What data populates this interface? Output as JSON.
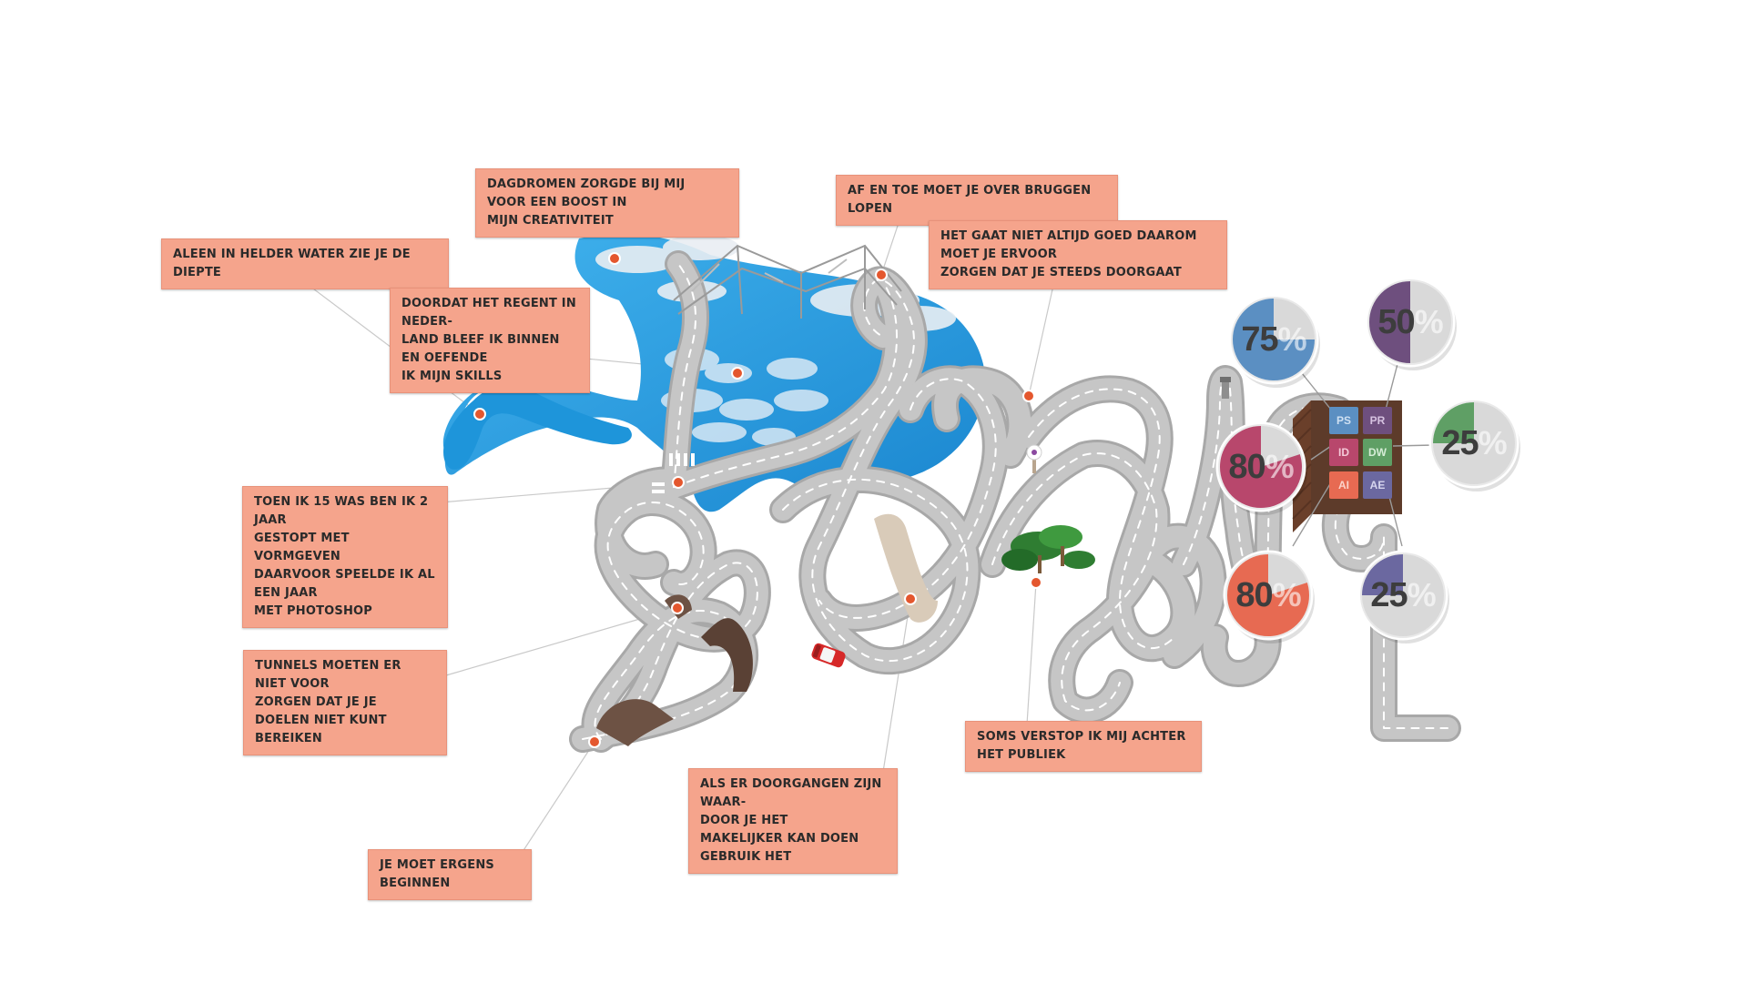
{
  "labels": {
    "dagdromen": "DAGDROMEN ZORGDE BIJ MIJ VOOR EEN BOOST IN\nMIJN CREATIVITEIT",
    "bruggen": "AF EN TOE MOET JE OVER BRUGGEN LOPEN",
    "water": "ALEEN IN HELDER WATER ZIE JE DE DIEPTE",
    "doorgaat": "HET GAAT NIET ALTIJD GOED DAAROM MOET JE ERVOOR\nZORGEN DAT JE STEEDS DOORGAAT",
    "regent": "DOORDAT HET REGENT IN NEDER-\nLAND BLEEF IK BINNEN EN OEFENDE\nIK MIJN SKILLS",
    "vijftien": "TOEN IK 15 WAS BEN IK 2 JAAR\nGESTOPT MET VORMGEVEN\nDAARVOOR SPEELDE IK AL EEN JAAR\nMET PHOTOSHOP",
    "tunnels": "TUNNELS MOETEN ER NIET VOOR\nZORGEN DAT JE JE DOELEN NIET KUNT\nBEREIKEN",
    "publiek": "SOMS VERSTOP IK MIJ ACHTER HET PUBLIEK",
    "doorgangen": "ALS ER DOORGANGEN ZIJN WAAR-\nDOOR JE HET\nMAKELIJKER KAN DOEN GEBRUIK HET",
    "beginnen": "JE MOET ERGENS BEGINNEN"
  },
  "skills": [
    {
      "code": "PS",
      "color": "#5b8fc2",
      "text_color": "#cfe0f2"
    },
    {
      "code": "PR",
      "color": "#6e4f7e",
      "text_color": "#d6c2e0"
    },
    {
      "code": "ID",
      "color": "#b8476c",
      "text_color": "#f4c9d8"
    },
    {
      "code": "DW",
      "color": "#5f9f65",
      "text_color": "#d5ecd6"
    },
    {
      "code": "AI",
      "color": "#e76a52",
      "text_color": "#fbd3c9"
    },
    {
      "code": "AE",
      "color": "#6b68a0",
      "text_color": "#d6d5ee"
    }
  ],
  "gauges": [
    {
      "skill": "PS",
      "value": 75,
      "pct_sign": "%",
      "color": "#5b8fc2"
    },
    {
      "skill": "PR",
      "value": 50,
      "pct_sign": "%",
      "color": "#6e4f7e"
    },
    {
      "skill": "DW",
      "value": 25,
      "pct_sign": "%",
      "color": "#5f9f65"
    },
    {
      "skill": "ID",
      "value": 80,
      "pct_sign": "%",
      "color": "#b8476c"
    },
    {
      "skill": "AI",
      "value": 80,
      "pct_sign": "%",
      "color": "#e76a52"
    },
    {
      "skill": "AE",
      "value": 25,
      "pct_sign": "%",
      "color": "#6b68a0"
    }
  ],
  "colors": {
    "label_bg": "#f5a48c",
    "road": "#c3c3c3",
    "road_edge": "#a9a9a9",
    "lake": "#1d9be0",
    "marker": "#e4572e"
  }
}
